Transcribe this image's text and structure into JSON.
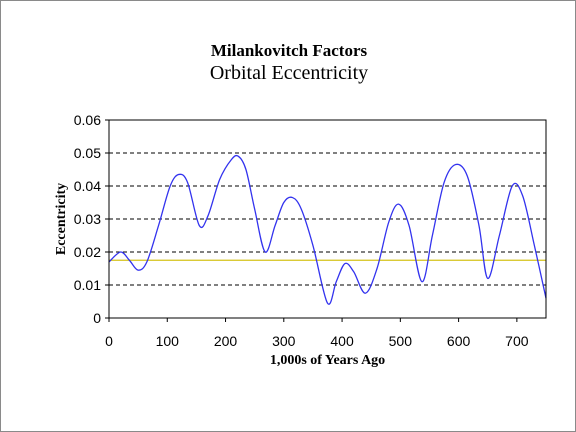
{
  "title": "Milankovitch Factors",
  "subtitle": "Orbital Eccentricity",
  "chart_data": {
    "type": "line",
    "xlabel": "1,000s of Years Ago",
    "ylabel": "Eccentricity",
    "xlim": [
      0,
      750
    ],
    "ylim": [
      0,
      0.06
    ],
    "xticks": [
      "0",
      "100",
      "200",
      "300",
      "400",
      "500",
      "600",
      "700"
    ],
    "yticks": [
      "0",
      "0.01",
      "0.02",
      "0.03",
      "0.04",
      "0.05",
      "0.06"
    ],
    "grid": "horizontal dashed",
    "reference_line": 0.0175,
    "colors": {
      "series": "#3333ee",
      "reference": "#d4c21a",
      "grid": "#000000"
    },
    "series": [
      {
        "x": [
          0,
          20,
          35,
          50,
          65,
          85,
          105,
          120,
          135,
          155,
          170,
          190,
          210,
          222,
          235,
          250,
          268,
          285,
          300,
          315,
          330,
          350,
          375,
          390,
          405,
          420,
          440,
          460,
          480,
          497,
          515,
          537,
          555,
          575,
          595,
          615,
          635,
          650,
          670,
          692,
          710,
          730,
          750
        ],
        "y": [
          0.017,
          0.02,
          0.0175,
          0.0145,
          0.017,
          0.028,
          0.04,
          0.0435,
          0.041,
          0.028,
          0.031,
          0.042,
          0.048,
          0.049,
          0.045,
          0.033,
          0.02,
          0.028,
          0.035,
          0.0365,
          0.033,
          0.022,
          0.0045,
          0.011,
          0.0165,
          0.014,
          0.0075,
          0.015,
          0.029,
          0.0345,
          0.028,
          0.011,
          0.025,
          0.041,
          0.0465,
          0.043,
          0.028,
          0.012,
          0.025,
          0.04,
          0.037,
          0.022,
          0.006
        ]
      }
    ]
  }
}
